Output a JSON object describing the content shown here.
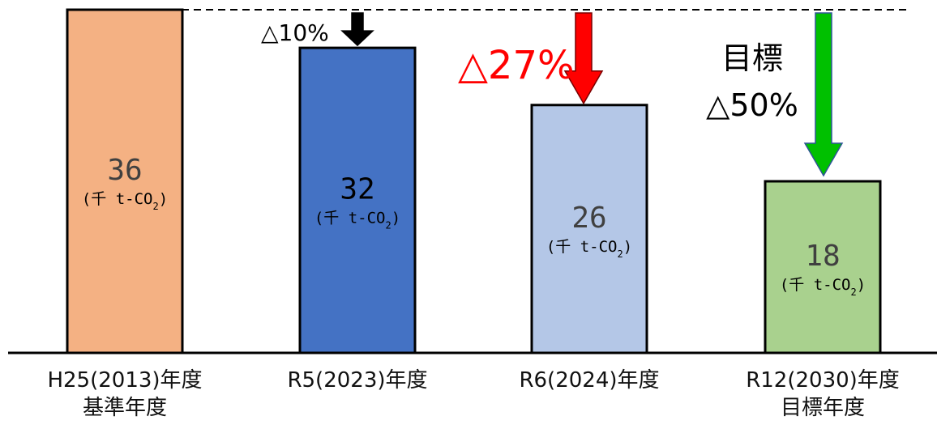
{
  "chart_data": {
    "type": "bar",
    "categories": [
      [
        "H25(2013)年度",
        "基準年度"
      ],
      [
        "R5(2023)年度"
      ],
      [
        "R6(2024)年度"
      ],
      [
        "R12(2030)年度",
        "目標年度"
      ]
    ],
    "values": [
      36,
      32,
      26,
      18
    ],
    "value_labels": [
      "36",
      "32",
      "26",
      "18"
    ],
    "unit_label": {
      "prefix": "(千 t-CO",
      "sub": "2",
      "suffix": ")"
    },
    "bar_colors": [
      "#f4b183",
      "#4472c4",
      "#b4c7e7",
      "#a9d18e"
    ],
    "value_text_colors": [
      "#404040",
      "#000000",
      "#404040",
      "#404040"
    ],
    "ylim": [
      0,
      36
    ],
    "reference_line": {
      "value": 36,
      "style": "dashed"
    },
    "annotations": [
      {
        "bar": 1,
        "text": "△10%",
        "color": "#000000",
        "arrow_color": "#000000"
      },
      {
        "bar": 2,
        "text": "△27%",
        "color": "#ff0000",
        "arrow_color": "#ff0000"
      },
      {
        "bar": 3,
        "lines": [
          "目標",
          "△50%"
        ],
        "color": "#000000",
        "arrow_color": "#00c000"
      }
    ]
  }
}
